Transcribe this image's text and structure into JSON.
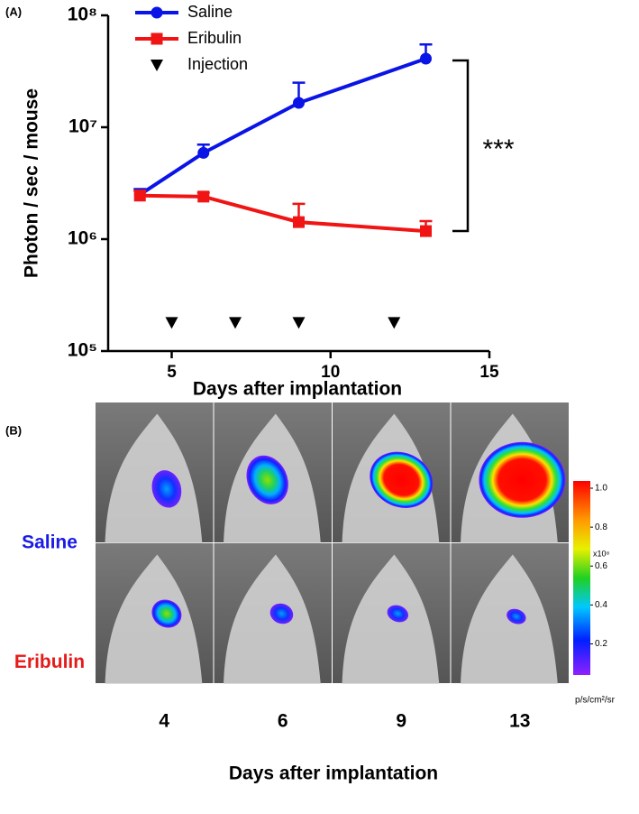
{
  "chart_data": {
    "type": "line",
    "panel_label": "(A)",
    "xlabel": "Days after implantation",
    "ylabel": "Photon / sec / mouse",
    "xlim": [
      3,
      15
    ],
    "xticks": [
      5,
      10,
      15
    ],
    "ylim": [
      100000,
      100000000
    ],
    "log_y": true,
    "yticks": [
      {
        "value": 100000,
        "label": "10⁵"
      },
      {
        "value": 1000000,
        "label": "10⁶"
      },
      {
        "value": 10000000,
        "label": "10⁷"
      },
      {
        "value": 100000000,
        "label": "10⁸"
      }
    ],
    "legend": "upper left",
    "annotation": "***",
    "series": [
      {
        "name": "Saline",
        "color": "#0a14e6",
        "marker": "circle",
        "x": [
          4,
          6,
          9,
          13
        ],
        "values": [
          2500000,
          5900000,
          16500000,
          41000000
        ],
        "errors": [
          300000,
          1100000,
          8500000,
          14000000
        ]
      },
      {
        "name": "Eribulin",
        "color": "#f01414",
        "marker": "square",
        "x": [
          4,
          6,
          9,
          13
        ],
        "values": [
          2450000,
          2400000,
          1420000,
          1180000
        ],
        "errors": [
          250000,
          200000,
          650000,
          270000
        ]
      },
      {
        "name": "Injection",
        "color": "#000000",
        "marker": "triangle",
        "line": false,
        "x": [
          5,
          7,
          9,
          12
        ],
        "values": [
          180000,
          180000,
          180000,
          180000
        ]
      }
    ]
  },
  "panel_b": {
    "label": "(B)",
    "rows": [
      "Saline",
      "Eribulin"
    ],
    "row_colors": [
      "#1a1ae6",
      "#e61a1a"
    ],
    "columns": [
      "4",
      "6",
      "9",
      "13"
    ],
    "xlabel": "Days after implantation",
    "colorbar": {
      "lim": [
        0.04,
        1.0
      ],
      "ticks": [
        {
          "value": 1,
          "label": "1.0"
        },
        {
          "value": 0.8,
          "label": "0.8"
        },
        {
          "value": 0.6,
          "label": "0.6"
        },
        {
          "value": 0.4,
          "label": "0.4"
        },
        {
          "value": 0.2,
          "label": "0.2"
        }
      ],
      "exponent": "x10⁸",
      "unit": "p/s/cm²/sr"
    }
  }
}
